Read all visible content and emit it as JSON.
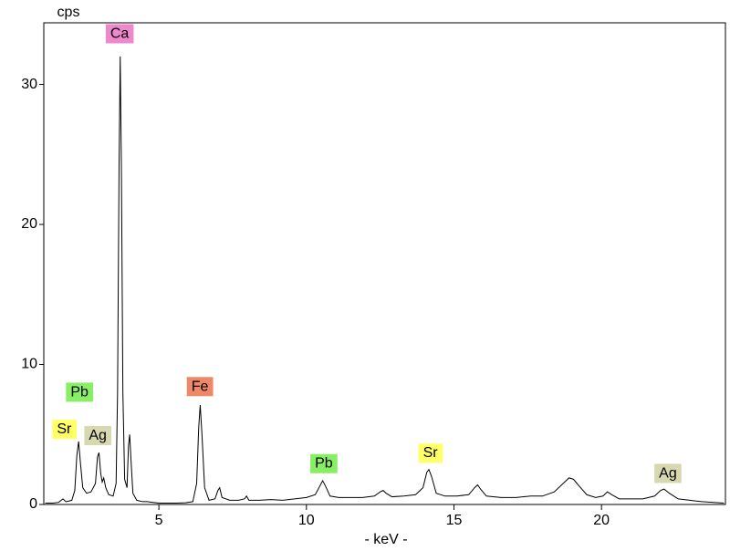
{
  "chart_data": {
    "type": "line",
    "x_label": "- keV -",
    "y_label": "cps",
    "x": [
      1.15,
      1.4,
      1.6,
      1.75,
      1.85,
      2.05,
      2.15,
      2.22,
      2.28,
      2.34,
      2.42,
      2.55,
      2.7,
      2.85,
      2.92,
      2.97,
      3.03,
      3.08,
      3.13,
      3.2,
      3.3,
      3.45,
      3.55,
      3.6,
      3.65,
      3.69,
      3.73,
      3.78,
      3.84,
      3.92,
      3.97,
      4.01,
      4.06,
      4.12,
      4.25,
      4.45,
      4.6,
      4.8,
      5.0,
      5.3,
      5.6,
      5.9,
      6.15,
      6.28,
      6.35,
      6.4,
      6.46,
      6.55,
      6.7,
      6.9,
      7.0,
      7.06,
      7.14,
      7.4,
      7.7,
      7.9,
      7.97,
      8.05,
      8.4,
      8.8,
      9.2,
      9.6,
      10.0,
      10.3,
      10.45,
      10.55,
      10.65,
      10.8,
      11.1,
      11.5,
      11.9,
      12.3,
      12.5,
      12.6,
      12.7,
      12.9,
      13.3,
      13.7,
      13.95,
      14.08,
      14.15,
      14.24,
      14.4,
      14.7,
      15.1,
      15.5,
      15.7,
      15.8,
      15.9,
      16.1,
      16.6,
      17.1,
      17.6,
      18.0,
      18.4,
      18.7,
      18.9,
      19.05,
      19.25,
      19.5,
      19.8,
      20.05,
      20.2,
      20.35,
      20.6,
      21.0,
      21.4,
      21.8,
      22.0,
      22.12,
      22.3,
      22.6,
      23.0,
      23.4,
      23.8,
      24.15
    ],
    "series": [
      {
        "color": "#000000",
        "values": [
          0.1,
          0.1,
          0.15,
          0.4,
          0.2,
          0.3,
          1.0,
          3.5,
          4.5,
          3.0,
          1.2,
          0.8,
          0.9,
          1.5,
          3.4,
          3.7,
          2.2,
          1.6,
          1.9,
          1.2,
          0.7,
          0.6,
          1.5,
          8,
          24,
          32,
          24,
          8,
          1.8,
          1.2,
          4.2,
          5.0,
          3.0,
          0.8,
          0.3,
          0.2,
          0.2,
          0.15,
          0.1,
          0.1,
          0.1,
          0.12,
          0.2,
          1.5,
          5.5,
          7.1,
          5.0,
          1.2,
          0.3,
          0.4,
          1.0,
          1.2,
          0.5,
          0.3,
          0.3,
          0.4,
          0.6,
          0.3,
          0.3,
          0.35,
          0.3,
          0.4,
          0.5,
          0.7,
          1.3,
          1.7,
          1.3,
          0.6,
          0.5,
          0.5,
          0.5,
          0.6,
          0.9,
          1.0,
          0.8,
          0.55,
          0.6,
          0.7,
          1.2,
          2.3,
          2.5,
          2.0,
          0.8,
          0.6,
          0.6,
          0.7,
          1.2,
          1.4,
          1.1,
          0.6,
          0.5,
          0.5,
          0.6,
          0.6,
          0.9,
          1.5,
          1.9,
          1.8,
          1.3,
          0.7,
          0.5,
          0.6,
          0.9,
          0.7,
          0.4,
          0.4,
          0.4,
          0.6,
          1.0,
          1.1,
          0.8,
          0.4,
          0.3,
          0.2,
          0.15,
          0.1
        ]
      }
    ],
    "xlim": [
      1.1,
      24.2
    ],
    "ylim": [
      0,
      34.4
    ],
    "xticks": [
      5,
      10,
      15,
      20
    ],
    "yticks": [
      0,
      10,
      20,
      30
    ],
    "annotations": [
      {
        "text": "Sr",
        "x": 1.79,
        "y": 5.35,
        "color": "#ffff66"
      },
      {
        "text": "Pb",
        "x": 2.31,
        "y": 8.0,
        "color": "#88ee66"
      },
      {
        "text": "Ag",
        "x": 2.93,
        "y": 4.9,
        "color": "#d8d8b0"
      },
      {
        "text": "Ca",
        "x": 3.67,
        "y": 33.6,
        "color": "#ee88cc"
      },
      {
        "text": "Fe",
        "x": 6.39,
        "y": 8.4,
        "color": "#ee8866"
      },
      {
        "text": "Pb",
        "x": 10.59,
        "y": 2.9,
        "color": "#88ee66"
      },
      {
        "text": "Sr",
        "x": 14.2,
        "y": 3.65,
        "color": "#ffff66"
      },
      {
        "text": "Ag",
        "x": 22.25,
        "y": 2.2,
        "color": "#d8d8b0"
      }
    ]
  }
}
